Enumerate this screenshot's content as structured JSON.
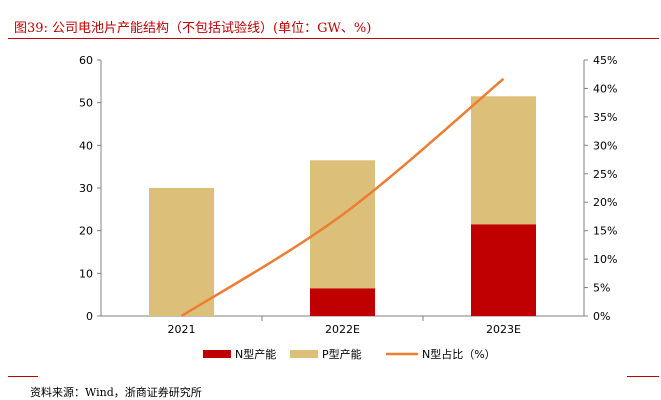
{
  "header": {
    "title": "图39:   公司电池片产能结构（不包括试验线）(单位：GW、%)"
  },
  "footer": {
    "source": "资料来源：Wind，浙商证券研究所"
  },
  "colors": {
    "n_type": "#c00000",
    "p_type": "#dcc07a",
    "ratio_line": "#ed7d31",
    "accent": "#c00000"
  },
  "chart_data": {
    "type": "bar",
    "stacked": true,
    "categories": [
      "2021",
      "2022E",
      "2023E"
    ],
    "series": [
      {
        "name": "N型产能",
        "type": "bar",
        "axis": "left",
        "values": [
          0,
          6.5,
          21.5
        ]
      },
      {
        "name": "P型产能",
        "type": "bar",
        "axis": "left",
        "values": [
          30,
          30,
          30
        ]
      },
      {
        "name": "N型占比（%）",
        "type": "line",
        "axis": "right",
        "values": [
          0,
          17.8,
          41.7
        ]
      }
    ],
    "y_left": {
      "ylim": [
        0,
        60
      ],
      "ticks": [
        "0",
        "10",
        "20",
        "30",
        "40",
        "50",
        "60"
      ]
    },
    "y_right": {
      "ylim": [
        0,
        45
      ],
      "ticks": [
        "0%",
        "5%",
        "10%",
        "15%",
        "20%",
        "25%",
        "30%",
        "35%",
        "40%",
        "45%"
      ]
    },
    "legend": {
      "position": "bottom",
      "items": [
        "N型产能",
        "P型产能",
        "N型占比（%）"
      ]
    },
    "grid": false
  }
}
